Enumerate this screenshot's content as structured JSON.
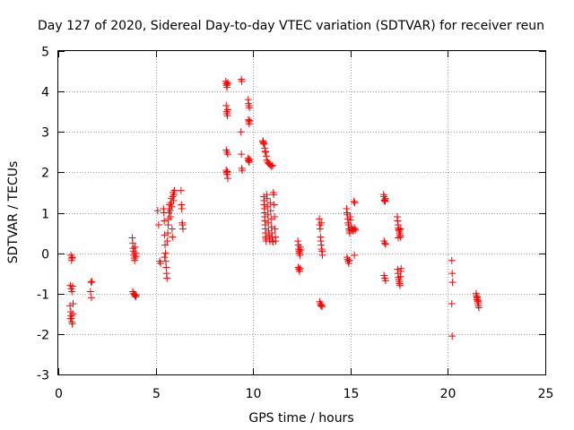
{
  "chart_data": {
    "type": "scatter",
    "title": "Day 127 of 2020, Sidereal Day-to-day VTEC variation (SDTVAR) for receiver reun",
    "xlabel": "GPS time / hours",
    "ylabel": "SDTVAR / TECUs",
    "xlim": [
      0,
      25
    ],
    "ylim": [
      -3,
      5
    ],
    "xticks": [
      0,
      5,
      10,
      15,
      20,
      25
    ],
    "yticks": [
      -3,
      -2,
      -1,
      0,
      1,
      2,
      3,
      4,
      5
    ],
    "grid": true,
    "marker": "+",
    "color": "#ff0000",
    "series": [
      {
        "name": "SDTVAR",
        "points": [
          [
            0.65,
            -0.05
          ],
          [
            0.7,
            -0.12
          ],
          [
            0.68,
            -0.18
          ],
          [
            0.72,
            -0.1
          ],
          [
            0.62,
            -0.8
          ],
          [
            0.66,
            -0.88
          ],
          [
            0.7,
            -0.95
          ],
          [
            0.74,
            -0.82
          ],
          [
            0.6,
            -1.3
          ],
          [
            0.64,
            -1.45
          ],
          [
            0.66,
            -1.55
          ],
          [
            0.68,
            -1.62
          ],
          [
            0.7,
            -1.7
          ],
          [
            0.72,
            -1.75
          ],
          [
            0.74,
            -1.5
          ],
          [
            0.76,
            -1.25
          ],
          [
            0.62,
            -1.62
          ],
          [
            1.65,
            -0.95
          ],
          [
            1.7,
            -1.1
          ],
          [
            1.72,
            -0.7
          ],
          [
            1.68,
            -0.72
          ],
          [
            3.8,
            0.38
          ],
          [
            3.82,
            0.25
          ],
          [
            3.84,
            0.12
          ],
          [
            3.86,
            0.05
          ],
          [
            3.88,
            -0.05
          ],
          [
            3.9,
            -0.12
          ],
          [
            3.92,
            -0.18
          ],
          [
            3.94,
            0.15
          ],
          [
            3.96,
            0.0
          ],
          [
            3.98,
            -0.08
          ],
          [
            3.82,
            -0.95
          ],
          [
            3.86,
            -1.0
          ],
          [
            3.9,
            -1.02
          ],
          [
            3.94,
            -1.05
          ],
          [
            3.98,
            -1.08
          ],
          [
            4.0,
            -1.03
          ],
          [
            5.1,
            1.05
          ],
          [
            5.15,
            0.7
          ],
          [
            5.2,
            -0.2
          ],
          [
            5.25,
            -0.25
          ],
          [
            5.4,
            1.1
          ],
          [
            5.42,
            1.0
          ],
          [
            5.44,
            0.8
          ],
          [
            5.46,
            0.45
          ],
          [
            5.48,
            0.2
          ],
          [
            5.5,
            0.0
          ],
          [
            5.52,
            -0.2
          ],
          [
            5.54,
            -0.35
          ],
          [
            5.56,
            -0.5
          ],
          [
            5.58,
            -0.62
          ],
          [
            5.45,
            -0.1
          ],
          [
            5.6,
            0.3
          ],
          [
            5.62,
            0.5
          ],
          [
            5.64,
            0.7
          ],
          [
            5.66,
            0.85
          ],
          [
            5.68,
            1.0
          ],
          [
            5.7,
            1.1
          ],
          [
            5.72,
            1.2
          ],
          [
            5.74,
            1.05
          ],
          [
            5.76,
            0.9
          ],
          [
            5.78,
            1.25
          ],
          [
            5.8,
            1.35
          ],
          [
            5.82,
            1.15
          ],
          [
            5.84,
            0.6
          ],
          [
            5.86,
            0.4
          ],
          [
            5.88,
            1.4
          ],
          [
            5.9,
            1.5
          ],
          [
            5.92,
            1.3
          ],
          [
            5.94,
            1.45
          ],
          [
            5.96,
            1.55
          ],
          [
            6.3,
            1.55
          ],
          [
            6.32,
            1.2
          ],
          [
            6.34,
            1.1
          ],
          [
            6.36,
            0.75
          ],
          [
            6.38,
            0.7
          ],
          [
            6.4,
            0.6
          ],
          [
            8.6,
            4.25
          ],
          [
            8.62,
            4.2
          ],
          [
            8.64,
            4.15
          ],
          [
            8.66,
            4.1
          ],
          [
            8.68,
            4.18
          ],
          [
            8.7,
            4.22
          ],
          [
            8.62,
            3.65
          ],
          [
            8.64,
            3.5
          ],
          [
            8.66,
            3.45
          ],
          [
            8.68,
            3.4
          ],
          [
            8.7,
            3.55
          ],
          [
            8.62,
            2.55
          ],
          [
            8.66,
            2.5
          ],
          [
            8.7,
            2.45
          ],
          [
            8.62,
            2.05
          ],
          [
            8.64,
            2.0
          ],
          [
            8.66,
            1.95
          ],
          [
            8.68,
            2.02
          ],
          [
            8.7,
            1.85
          ],
          [
            9.4,
            4.3
          ],
          [
            9.42,
            4.25
          ],
          [
            9.38,
            3.0
          ],
          [
            9.4,
            2.45
          ],
          [
            9.42,
            2.1
          ],
          [
            9.44,
            2.05
          ],
          [
            9.75,
            3.8
          ],
          [
            9.77,
            3.7
          ],
          [
            9.79,
            3.65
          ],
          [
            9.81,
            3.6
          ],
          [
            9.76,
            3.3
          ],
          [
            9.78,
            3.25
          ],
          [
            9.8,
            3.2
          ],
          [
            9.82,
            3.28
          ],
          [
            9.74,
            2.35
          ],
          [
            9.76,
            2.3
          ],
          [
            9.78,
            2.28
          ],
          [
            9.8,
            2.25
          ],
          [
            9.82,
            2.32
          ],
          [
            10.5,
            2.78
          ],
          [
            10.52,
            2.75
          ],
          [
            10.54,
            2.72
          ],
          [
            10.56,
            2.7
          ],
          [
            10.6,
            2.6
          ],
          [
            10.62,
            2.52
          ],
          [
            10.64,
            2.5
          ],
          [
            10.68,
            2.4
          ],
          [
            10.7,
            2.3
          ],
          [
            10.75,
            2.25
          ],
          [
            10.8,
            2.22
          ],
          [
            10.85,
            2.2
          ],
          [
            10.9,
            2.18
          ],
          [
            10.95,
            2.15
          ],
          [
            11.0,
            2.17
          ],
          [
            10.55,
            1.4
          ],
          [
            10.56,
            1.3
          ],
          [
            10.57,
            1.2
          ],
          [
            10.58,
            1.1
          ],
          [
            10.59,
            1.0
          ],
          [
            10.6,
            0.9
          ],
          [
            10.61,
            0.8
          ],
          [
            10.62,
            0.7
          ],
          [
            10.63,
            0.6
          ],
          [
            10.64,
            0.5
          ],
          [
            10.65,
            0.4
          ],
          [
            10.66,
            0.35
          ],
          [
            10.67,
            0.3
          ],
          [
            10.7,
            1.45
          ],
          [
            10.72,
            1.35
          ],
          [
            10.74,
            1.15
          ],
          [
            10.76,
            0.95
          ],
          [
            10.78,
            0.75
          ],
          [
            10.8,
            0.55
          ],
          [
            10.82,
            0.45
          ],
          [
            10.84,
            0.35
          ],
          [
            10.86,
            0.3
          ],
          [
            10.88,
            1.25
          ],
          [
            10.9,
            1.05
          ],
          [
            10.92,
            0.85
          ],
          [
            10.94,
            0.65
          ],
          [
            10.96,
            0.5
          ],
          [
            10.98,
            0.4
          ],
          [
            11.0,
            0.3
          ],
          [
            11.02,
            0.28
          ],
          [
            11.04,
            1.5
          ],
          [
            11.06,
            1.45
          ],
          [
            11.08,
            1.2
          ],
          [
            11.1,
            0.9
          ],
          [
            11.12,
            0.6
          ],
          [
            11.14,
            0.4
          ],
          [
            11.16,
            0.3
          ],
          [
            12.3,
            0.3
          ],
          [
            12.32,
            0.2
          ],
          [
            12.34,
            0.1
          ],
          [
            12.36,
            0.05
          ],
          [
            12.38,
            0.0
          ],
          [
            12.4,
            -0.05
          ],
          [
            12.42,
            0.15
          ],
          [
            12.44,
            0.08
          ],
          [
            12.32,
            -0.35
          ],
          [
            12.35,
            -0.4
          ],
          [
            12.38,
            -0.45
          ],
          [
            12.41,
            -0.38
          ],
          [
            13.4,
            0.85
          ],
          [
            13.42,
            0.7
          ],
          [
            13.44,
            0.6
          ],
          [
            13.46,
            0.4
          ],
          [
            13.48,
            0.3
          ],
          [
            13.5,
            0.2
          ],
          [
            13.52,
            0.1
          ],
          [
            13.54,
            0.05
          ],
          [
            13.56,
            -0.05
          ],
          [
            13.5,
            0.75
          ],
          [
            13.42,
            -1.2
          ],
          [
            13.45,
            -1.25
          ],
          [
            13.48,
            -1.3
          ],
          [
            13.51,
            -1.28
          ],
          [
            13.54,
            -1.32
          ],
          [
            14.8,
            1.1
          ],
          [
            14.82,
            1.0
          ],
          [
            14.84,
            0.95
          ],
          [
            14.86,
            0.85
          ],
          [
            14.88,
            0.75
          ],
          [
            14.9,
            0.7
          ],
          [
            14.92,
            0.6
          ],
          [
            14.94,
            0.55
          ],
          [
            14.96,
            0.5
          ],
          [
            14.98,
            0.9
          ],
          [
            15.0,
            0.82
          ],
          [
            15.02,
            0.65
          ],
          [
            15.04,
            0.58
          ],
          [
            14.82,
            -0.1
          ],
          [
            14.85,
            -0.15
          ],
          [
            14.88,
            -0.2
          ],
          [
            14.91,
            -0.25
          ],
          [
            14.94,
            -0.18
          ],
          [
            15.1,
            0.6
          ],
          [
            15.15,
            0.55
          ],
          [
            15.2,
            0.62
          ],
          [
            15.25,
            0.58
          ],
          [
            15.18,
            1.28
          ],
          [
            15.22,
            1.25
          ],
          [
            15.2,
            -0.05
          ],
          [
            16.7,
            1.45
          ],
          [
            16.72,
            1.4
          ],
          [
            16.74,
            1.3
          ],
          [
            16.76,
            1.32
          ],
          [
            16.78,
            1.28
          ],
          [
            16.8,
            1.35
          ],
          [
            16.72,
            0.3
          ],
          [
            16.76,
            0.25
          ],
          [
            16.8,
            0.22
          ],
          [
            16.72,
            -0.55
          ],
          [
            16.76,
            -0.62
          ],
          [
            16.8,
            -0.68
          ],
          [
            17.4,
            0.9
          ],
          [
            17.42,
            0.8
          ],
          [
            17.44,
            0.7
          ],
          [
            17.46,
            0.62
          ],
          [
            17.48,
            0.58
          ],
          [
            17.5,
            0.55
          ],
          [
            17.52,
            0.5
          ],
          [
            17.54,
            0.45
          ],
          [
            17.56,
            0.4
          ],
          [
            17.58,
            0.6
          ],
          [
            17.45,
            0.38
          ],
          [
            17.42,
            -0.4
          ],
          [
            17.44,
            -0.5
          ],
          [
            17.46,
            -0.6
          ],
          [
            17.48,
            -0.65
          ],
          [
            17.5,
            -0.7
          ],
          [
            17.52,
            -0.75
          ],
          [
            17.54,
            -0.8
          ],
          [
            17.56,
            -0.58
          ],
          [
            17.58,
            -0.45
          ],
          [
            17.6,
            -0.38
          ],
          [
            20.2,
            -0.18
          ],
          [
            20.22,
            -0.5
          ],
          [
            20.24,
            -0.72
          ],
          [
            20.2,
            -1.25
          ],
          [
            20.22,
            -2.05
          ],
          [
            21.45,
            -1.0
          ],
          [
            21.47,
            -1.05
          ],
          [
            21.49,
            -1.1
          ],
          [
            21.51,
            -1.15
          ],
          [
            21.53,
            -1.2
          ],
          [
            21.55,
            -1.25
          ],
          [
            21.57,
            -1.3
          ],
          [
            21.59,
            -1.35
          ],
          [
            21.5,
            -1.08
          ],
          [
            21.56,
            -1.18
          ]
        ]
      }
    ]
  }
}
